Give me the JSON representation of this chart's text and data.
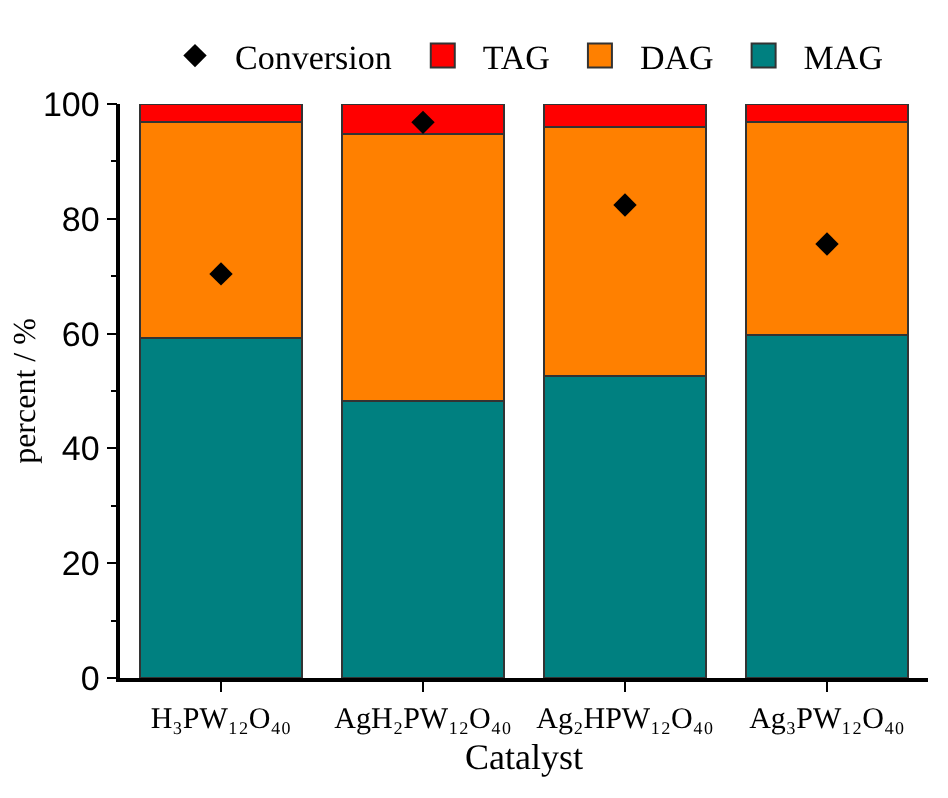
{
  "chart_data": {
    "type": "bar",
    "stacked": true,
    "xlabel": "Catalyst",
    "ylabel": "percent / %",
    "categories": [
      "H₃PW₁₂O₄₀",
      "AgH₂PW₁₂O₄₀",
      "Ag₂HPW₁₂O₄₀",
      "Ag₃PW₁₂O₄₀"
    ],
    "series": [
      {
        "name": "MAG",
        "color": "#008080",
        "values": [
          59.2,
          48.3,
          52.7,
          59.7
        ]
      },
      {
        "name": "DAG",
        "color": "#ff8000",
        "values": [
          37.6,
          46.4,
          43.3,
          37.1
        ]
      },
      {
        "name": "TAG",
        "color": "#ff0000",
        "values": [
          3.2,
          5.3,
          4.0,
          3.2
        ]
      },
      {
        "name": "Conversion",
        "type": "scatter",
        "marker": "diamond",
        "color": "#000000",
        "values": [
          70.4,
          96.8,
          82.4,
          75.6
        ]
      }
    ],
    "ylim": [
      0,
      100
    ],
    "yticks": [
      0,
      20,
      40,
      60,
      80,
      100
    ],
    "grid": false,
    "legend": "top"
  }
}
